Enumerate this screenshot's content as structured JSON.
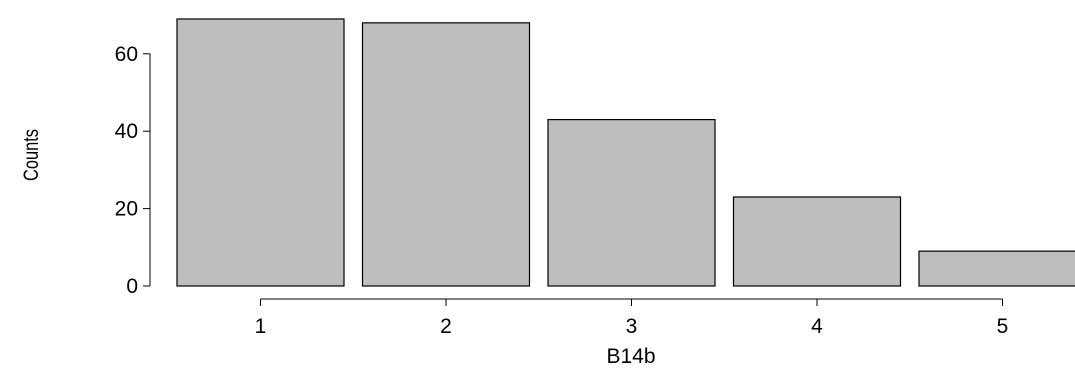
{
  "chart_data": {
    "type": "bar",
    "categories": [
      "1",
      "2",
      "3",
      "4",
      "5"
    ],
    "values": [
      69,
      68,
      43,
      23,
      9
    ],
    "title": "",
    "xlabel": "B14b",
    "ylabel": "Counts",
    "ylim": [
      0,
      69
    ],
    "yticks": [
      "0",
      "20",
      "40",
      "60"
    ],
    "grid": false,
    "bar_fill": "#bebebe",
    "bar_stroke": "#000000"
  }
}
